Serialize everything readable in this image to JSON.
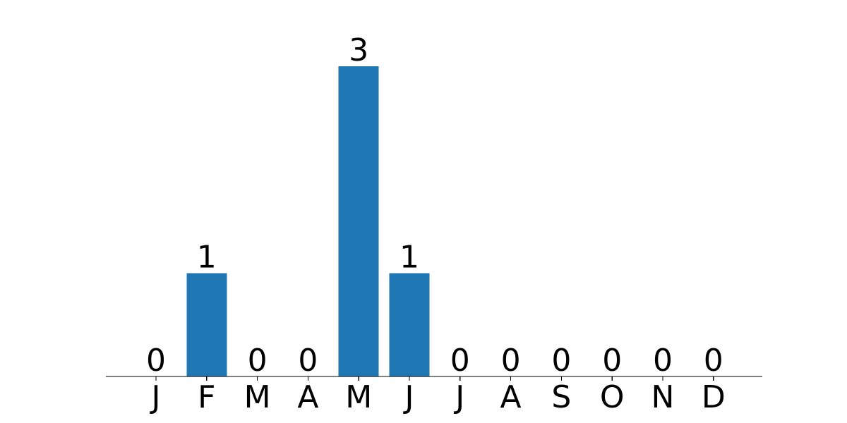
{
  "chart_data": {
    "type": "bar",
    "categories": [
      "J",
      "F",
      "M",
      "A",
      "M",
      "J",
      "J",
      "A",
      "S",
      "O",
      "N",
      "D"
    ],
    "values": [
      0,
      1,
      0,
      0,
      3,
      1,
      0,
      0,
      0,
      0,
      0,
      0
    ],
    "data_labels": [
      "0",
      "1",
      "0",
      "0",
      "3",
      "1",
      "0",
      "0",
      "0",
      "0",
      "0",
      "0"
    ],
    "title": "",
    "xlabel": "",
    "ylabel": "",
    "ylim": [
      0,
      3.15
    ],
    "grid": false,
    "legend": "none",
    "colors": {
      "bar": "#1f77b4",
      "axis": "#000000"
    }
  }
}
